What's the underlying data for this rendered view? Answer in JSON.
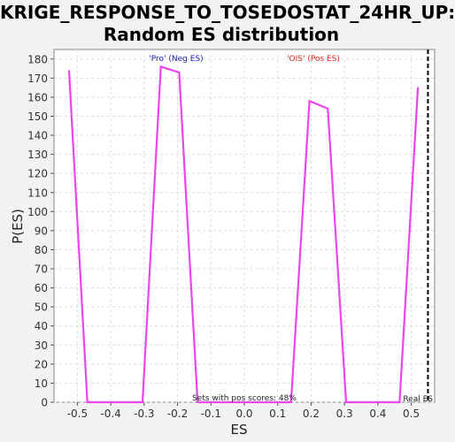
{
  "chart_data": {
    "type": "line",
    "title_lines": [
      "KRIGE_RESPONSE_TO_TOSEDOSTAT_24HR_UP:",
      "Random ES distribution"
    ],
    "xlabel": "ES",
    "ylabel": "P(ES)",
    "xlim": [
      -0.57,
      0.57
    ],
    "ylim": [
      0,
      185
    ],
    "xticks": [
      -0.5,
      -0.4,
      -0.3,
      -0.2,
      -0.1,
      0.0,
      0.1,
      0.2,
      0.3,
      0.4,
      0.5
    ],
    "xtick_labels": [
      "-0.5",
      "-0.4",
      "-0.3",
      "-0.2",
      "-0.1",
      "0.0",
      "0.1",
      "0.2",
      "0.3",
      "0.4",
      "0.5"
    ],
    "yticks": [
      0,
      10,
      20,
      30,
      40,
      50,
      60,
      70,
      80,
      90,
      100,
      110,
      120,
      130,
      140,
      150,
      160,
      170,
      180
    ],
    "ytick_labels": [
      "0",
      "10",
      "20",
      "30",
      "40",
      "50",
      "60",
      "70",
      "80",
      "90",
      "100",
      "110",
      "120",
      "130",
      "140",
      "150",
      "160",
      "170",
      "180"
    ],
    "grid": true,
    "series": [
      {
        "color": "#ee44ee",
        "points": [
          [
            -0.525,
            174
          ],
          [
            -0.47,
            0
          ],
          [
            -0.305,
            0
          ],
          [
            -0.25,
            176
          ],
          [
            -0.195,
            173
          ],
          [
            -0.14,
            0
          ],
          [
            0.14,
            0
          ],
          [
            0.195,
            158
          ],
          [
            0.25,
            154
          ],
          [
            0.305,
            0
          ],
          [
            0.465,
            0
          ],
          [
            0.52,
            165
          ]
        ]
      }
    ],
    "real_es": 0.55,
    "annotations": {
      "neg_label": "'Pro' (Neg ES)",
      "pos_label": "'OIS' (Pos ES)",
      "pos_scores_text": "Sets with pos scores: 48%",
      "real_es_label": "Real ES"
    },
    "colors": {
      "neg_label": "#1a1aa8",
      "pos_label": "#dd2222",
      "line": "#ee44ee",
      "real_es_line": "#000000",
      "grid": "#dddddd"
    }
  }
}
